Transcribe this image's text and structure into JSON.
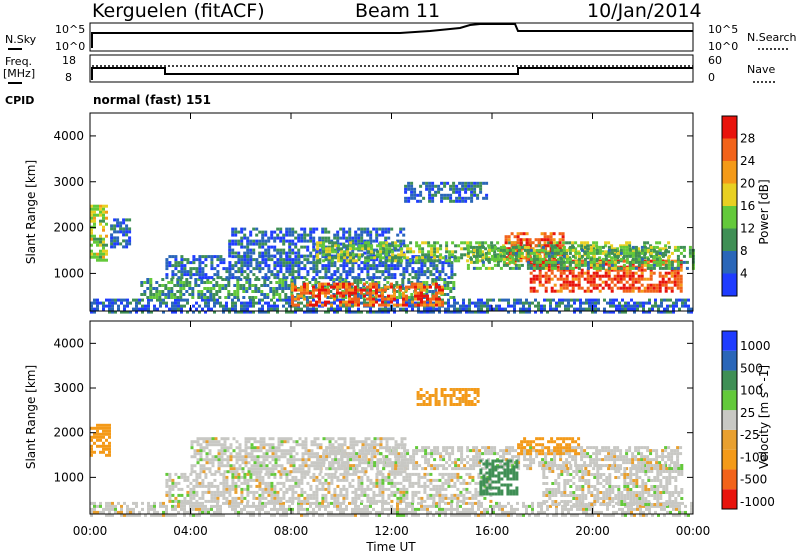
{
  "header": {
    "station": "Kerguelen (fitACF)",
    "beam": "Beam 11",
    "date": "10/Jan/2014"
  },
  "noise_panel": {
    "left_label": "N.Sky",
    "right_label": "N.Search",
    "left_ticks": [
      "10^5",
      "10^0"
    ],
    "right_ticks": [
      "10^5",
      "10^0"
    ]
  },
  "freq_panel": {
    "left_label_1": "Freq.",
    "left_label_2": "[MHz]",
    "left_ticks": [
      "18",
      "8"
    ],
    "right_label": "Nave",
    "right_ticks": [
      "60",
      "0"
    ],
    "cpid_label": "CPID",
    "cpid_value": "normal (fast) 151"
  },
  "chart_data": [
    {
      "type": "heatmap",
      "title": "Power",
      "xlabel": "",
      "ylabel": "Slant Range [km]",
      "colorbar_label": "Power [dB]",
      "xlim": [
        0,
        24
      ],
      "ylim": [
        180,
        4500
      ],
      "y_ticks": [
        "1000",
        "2000",
        "3000",
        "4000"
      ],
      "colorbar_ticks": [
        "28",
        "24",
        "20",
        "16",
        "12",
        "8",
        "4"
      ],
      "colors": [
        "#1f3cff",
        "#2a66b8",
        "#3f8f55",
        "#63c93a",
        "#e8d022",
        "#f49a18",
        "#f2631a",
        "#e8130c"
      ],
      "regions": [
        {
          "t0": 0.0,
          "t1": 0.7,
          "r0": 1300,
          "r1": 2500,
          "v": 16
        },
        {
          "t0": 0.8,
          "t1": 1.6,
          "r0": 1600,
          "r1": 2200,
          "v": 6
        },
        {
          "t0": 0.0,
          "t1": 24.0,
          "r0": 180,
          "r1": 450,
          "v": 6
        },
        {
          "t0": 2.0,
          "t1": 14.5,
          "r0": 450,
          "r1": 900,
          "v": 10
        },
        {
          "t0": 3.0,
          "t1": 14.5,
          "r0": 900,
          "r1": 1400,
          "v": 6
        },
        {
          "t0": 5.5,
          "t1": 12.5,
          "r0": 1400,
          "r1": 2000,
          "v": 6
        },
        {
          "t0": 9.0,
          "t1": 23.0,
          "r0": 1300,
          "r1": 1700,
          "v": 14
        },
        {
          "t0": 8.0,
          "t1": 14.0,
          "r0": 300,
          "r1": 800,
          "v": 26
        },
        {
          "t0": 12.5,
          "t1": 15.8,
          "r0": 2600,
          "r1": 3000,
          "v": 6
        },
        {
          "t0": 16.5,
          "t1": 18.8,
          "r0": 1200,
          "r1": 1900,
          "v": 26
        },
        {
          "t0": 17.5,
          "t1": 23.5,
          "r0": 600,
          "r1": 1300,
          "v": 28
        },
        {
          "t0": 15.0,
          "t1": 24.0,
          "r0": 1100,
          "r1": 1600,
          "v": 12
        }
      ]
    },
    {
      "type": "heatmap",
      "title": "Velocity",
      "xlabel": "Time UT",
      "ylabel": "Slant Range [km]",
      "colorbar_label": "Velocity [m s^-1]",
      "xlim": [
        0,
        24
      ],
      "ylim": [
        180,
        4500
      ],
      "x_ticks": [
        "00:00",
        "04:00",
        "08:00",
        "12:00",
        "16:00",
        "20:00",
        "00:00"
      ],
      "y_ticks": [
        "1000",
        "2000",
        "3000",
        "4000"
      ],
      "colorbar_ticks": [
        "1000",
        "500",
        "100",
        "25",
        "-25",
        "-100",
        "-500",
        "-1000"
      ],
      "colors": [
        "#e8130c",
        "#f2631a",
        "#f49a18",
        "#e8a030",
        "#c8c8c4",
        "#63c93a",
        "#3f8f55",
        "#2a66b8",
        "#1f3cff"
      ],
      "regions": [
        {
          "t0": 0.0,
          "t1": 0.8,
          "r0": 1500,
          "r1": 2200,
          "v": -250
        },
        {
          "t0": 0.0,
          "t1": 24.0,
          "r0": 180,
          "r1": 450,
          "v": 0
        },
        {
          "t0": 3.0,
          "t1": 16.0,
          "r0": 450,
          "r1": 1100,
          "v": 0
        },
        {
          "t0": 4.0,
          "t1": 12.5,
          "r0": 1100,
          "r1": 1900,
          "v": 0
        },
        {
          "t0": 9.0,
          "t1": 23.5,
          "r0": 1200,
          "r1": 1700,
          "v": 0
        },
        {
          "t0": 13.0,
          "t1": 15.5,
          "r0": 2650,
          "r1": 3000,
          "v": -120
        },
        {
          "t0": 15.5,
          "t1": 17.0,
          "r0": 600,
          "r1": 1400,
          "v": 200
        },
        {
          "t0": 17.0,
          "t1": 19.5,
          "r0": 1500,
          "r1": 1900,
          "v": -250
        },
        {
          "t0": 18.0,
          "t1": 23.5,
          "r0": 400,
          "r1": 1300,
          "v": 0
        }
      ]
    }
  ]
}
